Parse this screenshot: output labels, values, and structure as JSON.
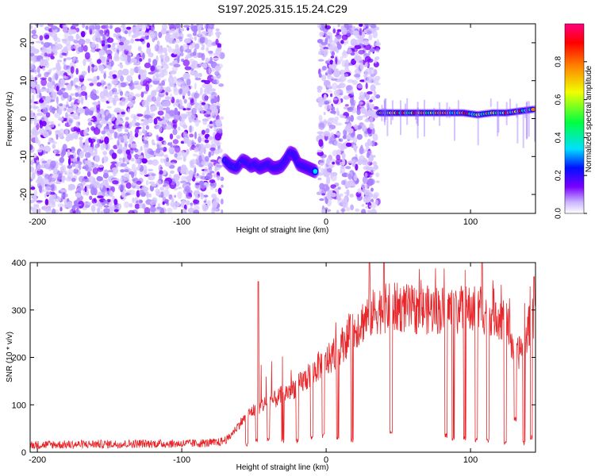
{
  "figure_title": "S197.2025.315.15.24.C29",
  "chart_data": [
    {
      "type": "heatmap",
      "title": "S197.2025.315.15.24.C29",
      "xlabel": "Height of straight line (km)",
      "ylabel": "Frequency (Hz)",
      "xlim": [
        -205,
        145
      ],
      "ylim": [
        -25,
        25
      ],
      "x_ticks": [
        -200,
        -100,
        0,
        100
      ],
      "y_ticks": [
        -20,
        -10,
        0,
        10,
        20
      ],
      "colorbar": {
        "label": "Normalized spectral amplitude",
        "range": [
          0,
          1
        ],
        "ticks": [
          "0.0",
          "0.2",
          "0.4",
          "0.6",
          "0.8"
        ],
        "colors": [
          "#ffffff",
          "#c9b4ff",
          "#7a00ff",
          "#0010ff",
          "#00e0ff",
          "#00ff40",
          "#f0ff00",
          "#ff8000",
          "#ff0000",
          "#ff0080"
        ]
      },
      "regions": [
        {
          "description": "noise",
          "x_range": [
            -205,
            -72
          ],
          "amplitude": 0.15
        },
        {
          "description": "gap",
          "x_range": [
            -72,
            -5
          ],
          "amplitude": 0.0
        },
        {
          "description": "noise",
          "x_range": [
            -5,
            36
          ],
          "amplitude": 0.15
        },
        {
          "description": "gap",
          "x_range": [
            36,
            145
          ],
          "amplitude": 0.0
        }
      ],
      "tracks": [
        {
          "x": [
            -70,
            -66,
            -62,
            -58,
            -55,
            -52,
            -49,
            -46,
            -43,
            -40,
            -37,
            -34,
            -31,
            -28,
            -25,
            -22,
            -19,
            -16,
            -13,
            -10,
            -7
          ],
          "y": [
            -11,
            -12.5,
            -13,
            -11,
            -11.5,
            -12.5,
            -12,
            -13,
            -12.5,
            -12,
            -13,
            -13,
            -12.5,
            -11,
            -9,
            -9.5,
            -12,
            -12.5,
            -13,
            -13.5,
            -14
          ],
          "peak_amplitude": 0.45
        },
        {
          "x": [
            37,
            45,
            55,
            65,
            75,
            85,
            95,
            105,
            115,
            125,
            135,
            145
          ],
          "y": [
            1.5,
            1.5,
            1.5,
            1.5,
            1.5,
            1.5,
            1.5,
            1.0,
            1.5,
            1.5,
            2.0,
            2.5
          ],
          "peak_amplitude": 0.9
        }
      ]
    },
    {
      "type": "line",
      "title": "",
      "xlabel": "Height of straight line (km)",
      "ylabel": "SNR (10 * v/v)",
      "xlim": [
        -205,
        145
      ],
      "ylim": [
        0,
        400
      ],
      "x_ticks": [
        -200,
        -100,
        0,
        100
      ],
      "y_ticks": [
        0,
        100,
        200,
        300,
        400
      ],
      "series": [
        {
          "name": "SNR",
          "color": "#e8262a",
          "x": [
            -205,
            -190,
            -175,
            -160,
            -145,
            -130,
            -115,
            -100,
            -85,
            -75,
            -68,
            -60,
            -52,
            -44,
            -36,
            -28,
            -20,
            -12,
            -4,
            4,
            12,
            20,
            28,
            36,
            44,
            52,
            60,
            68,
            76,
            84,
            92,
            100,
            108,
            116,
            124,
            132,
            140,
            145
          ],
          "y": [
            15,
            16,
            16,
            17,
            17,
            18,
            18,
            18,
            19,
            20,
            28,
            60,
            85,
            100,
            110,
            125,
            140,
            160,
            185,
            200,
            230,
            260,
            285,
            300,
            305,
            305,
            300,
            300,
            300,
            300,
            300,
            300,
            300,
            295,
            280,
            200,
            260,
            300
          ],
          "dropouts": [
            {
              "x": -55,
              "y": 10
            },
            {
              "x": -48,
              "y": 20
            },
            {
              "x": -40,
              "y": 22
            },
            {
              "x": -30,
              "y": 18
            },
            {
              "x": -20,
              "y": 20
            },
            {
              "x": -10,
              "y": 25
            },
            {
              "x": -2,
              "y": 30
            },
            {
              "x": 8,
              "y": 25
            },
            {
              "x": 18,
              "y": 20
            },
            {
              "x": 45,
              "y": 35
            },
            {
              "x": 83,
              "y": 30
            },
            {
              "x": 88,
              "y": 25
            },
            {
              "x": 96,
              "y": 25
            },
            {
              "x": 104,
              "y": 20
            },
            {
              "x": 112,
              "y": 20
            },
            {
              "x": 124,
              "y": 15
            },
            {
              "x": 131,
              "y": 65
            },
            {
              "x": 137,
              "y": 15
            },
            {
              "x": 142,
              "y": 25
            }
          ],
          "spikes": [
            {
              "x": -47,
              "y": 360
            },
            {
              "x": 30,
              "y": 400
            },
            {
              "x": 40,
              "y": 400
            },
            {
              "x": 108,
              "y": 410
            },
            {
              "x": 144,
              "y": 370
            }
          ]
        }
      ]
    }
  ]
}
